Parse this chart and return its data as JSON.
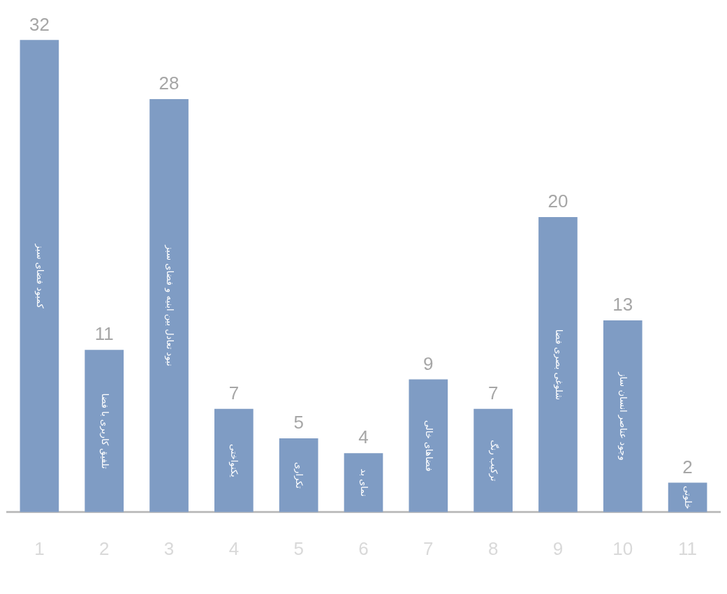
{
  "chart_data": {
    "type": "bar",
    "categories": [
      "1",
      "2",
      "3",
      "4",
      "5",
      "6",
      "7",
      "8",
      "9",
      "10",
      "11"
    ],
    "values": [
      32,
      11,
      28,
      7,
      5,
      4,
      9,
      7,
      20,
      13,
      2
    ],
    "color": "#7f9cc4",
    "data_labels": true,
    "grid": false,
    "legend": false,
    "tick_labels": "x",
    "annotations": [
      "کمبود فضای سبز",
      "تلفیق کاربری با فضا",
      "نبود تعادل بین ابنیه و فضای سبز",
      "یکنواختی",
      "تکراری",
      "نمای بد",
      "فضاهای خالی",
      "ترکیب رنگ",
      "شلوغی بصری فضا",
      "وجود عناصر انسان ساز",
      "خلوتی"
    ]
  }
}
